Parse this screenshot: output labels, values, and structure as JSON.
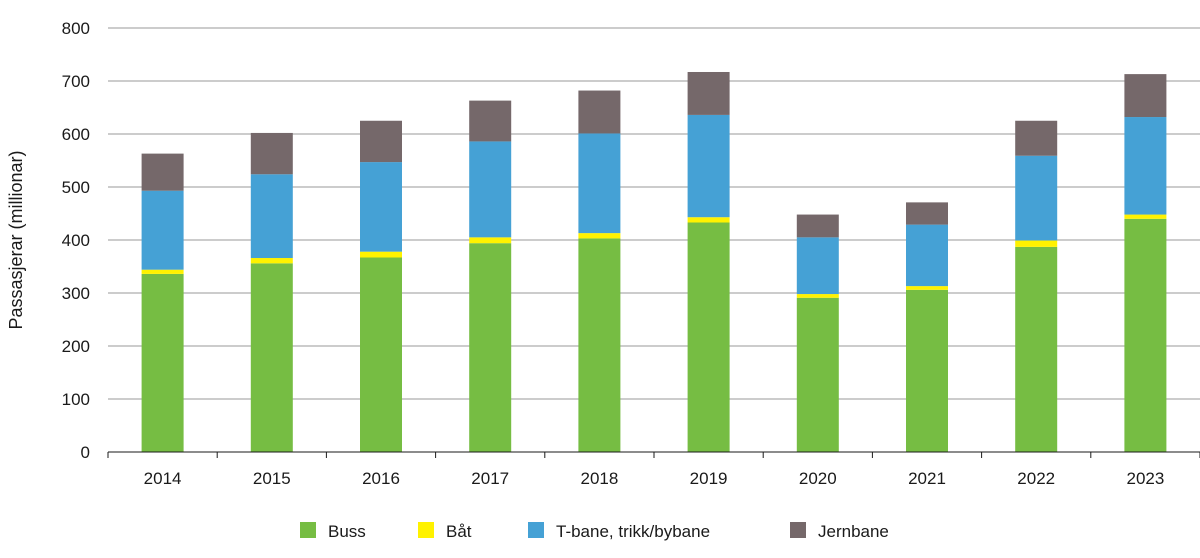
{
  "chart_data": {
    "type": "bar",
    "stacked": true,
    "title": "",
    "xlabel": "",
    "ylabel": "Passasjerar (millionar)",
    "ylim": [
      0,
      800
    ],
    "yticks": [
      0,
      100,
      200,
      300,
      400,
      500,
      600,
      700,
      800
    ],
    "grid": true,
    "legend_position": "bottom-center",
    "categories": [
      "2014",
      "2015",
      "2016",
      "2017",
      "2018",
      "2019",
      "2020",
      "2021",
      "2022",
      "2023"
    ],
    "series": [
      {
        "name": "Buss",
        "color": "#76bd43",
        "values": [
          336,
          356,
          367,
          394,
          403,
          433,
          291,
          306,
          387,
          440
        ]
      },
      {
        "name": "Båt",
        "color": "#fff200",
        "values": [
          8,
          10,
          11,
          11,
          10,
          10,
          7,
          7,
          12,
          8
        ]
      },
      {
        "name": "T-bane, trikk/bybane",
        "color": "#45a1d5",
        "values": [
          149,
          158,
          169,
          181,
          188,
          193,
          107,
          116,
          160,
          184
        ]
      },
      {
        "name": "Jernbane",
        "color": "#75686a",
        "values": [
          70,
          78,
          78,
          77,
          81,
          81,
          43,
          42,
          66,
          81
        ]
      }
    ]
  }
}
